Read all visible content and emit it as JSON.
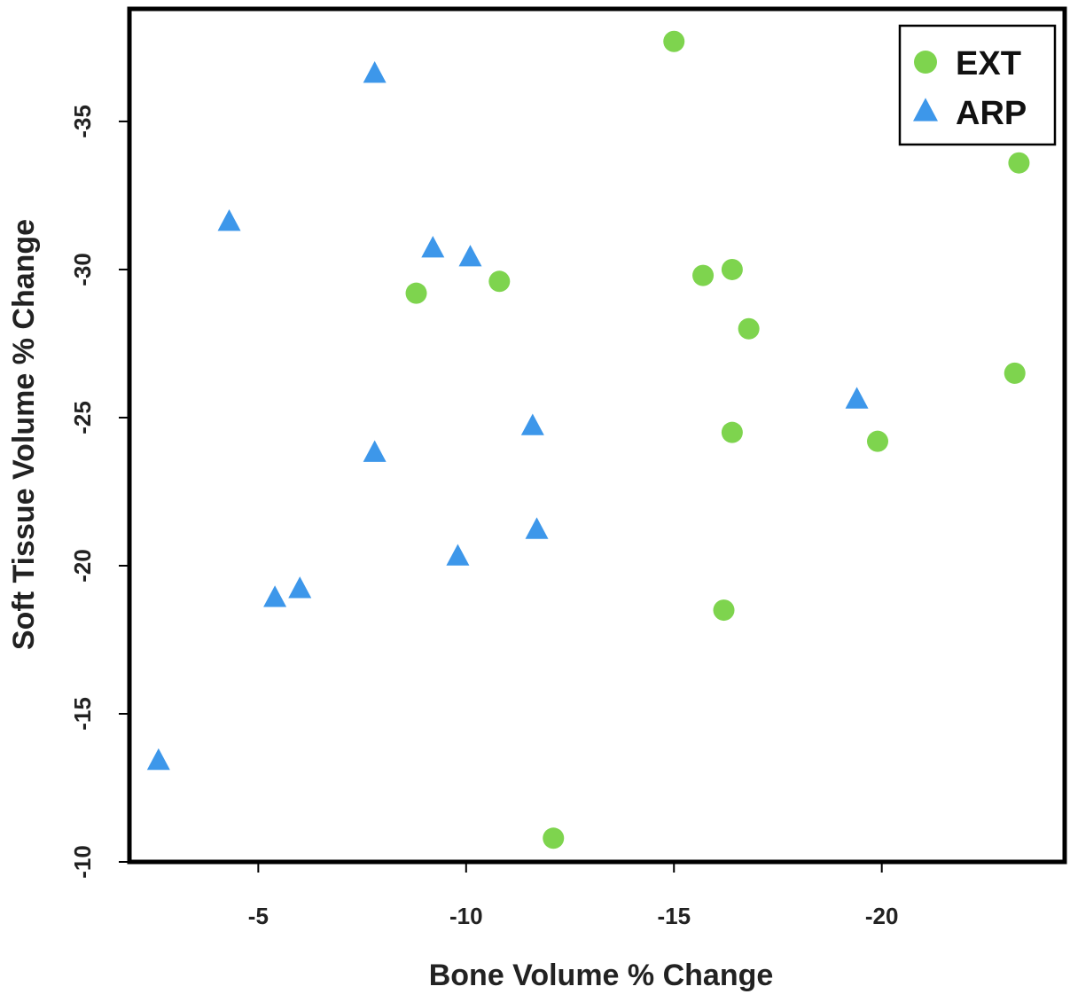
{
  "chart_data": {
    "type": "scatter",
    "title": "",
    "xlabel": "Bone Volume % Change",
    "ylabel": "Soft Tissue Volume % Change",
    "xlim": [
      -1.9,
      -24.4
    ],
    "ylim": [
      -10.0,
      -38.8
    ],
    "xticks": [
      -5,
      -10,
      -15,
      -20
    ],
    "yticks": [
      -10,
      -15,
      -20,
      -25,
      -30,
      -35
    ],
    "grid": false,
    "legend_position": "top-right",
    "series": [
      {
        "name": "EXT",
        "marker": "circle",
        "color": "#7ed44e",
        "points": [
          {
            "x": -15.0,
            "y": -37.7
          },
          {
            "x": -23.3,
            "y": -33.6
          },
          {
            "x": -8.8,
            "y": -29.2
          },
          {
            "x": -10.8,
            "y": -29.6
          },
          {
            "x": -15.7,
            "y": -29.8
          },
          {
            "x": -16.4,
            "y": -30.0
          },
          {
            "x": -16.8,
            "y": -28.0
          },
          {
            "x": -23.2,
            "y": -26.5
          },
          {
            "x": -16.4,
            "y": -24.5
          },
          {
            "x": -19.9,
            "y": -24.2
          },
          {
            "x": -16.2,
            "y": -18.5
          },
          {
            "x": -12.1,
            "y": -10.8
          }
        ]
      },
      {
        "name": "ARP",
        "marker": "triangle",
        "color": "#3d97ea",
        "points": [
          {
            "x": -7.8,
            "y": -36.6
          },
          {
            "x": -4.3,
            "y": -31.6
          },
          {
            "x": -9.2,
            "y": -30.7
          },
          {
            "x": -10.1,
            "y": -30.4
          },
          {
            "x": -19.4,
            "y": -25.6
          },
          {
            "x": -11.6,
            "y": -24.7
          },
          {
            "x": -7.8,
            "y": -23.8
          },
          {
            "x": -11.7,
            "y": -21.2
          },
          {
            "x": -9.8,
            "y": -20.3
          },
          {
            "x": -6.0,
            "y": -19.2
          },
          {
            "x": -5.4,
            "y": -18.9
          },
          {
            "x": -2.6,
            "y": -13.4
          }
        ]
      }
    ]
  }
}
